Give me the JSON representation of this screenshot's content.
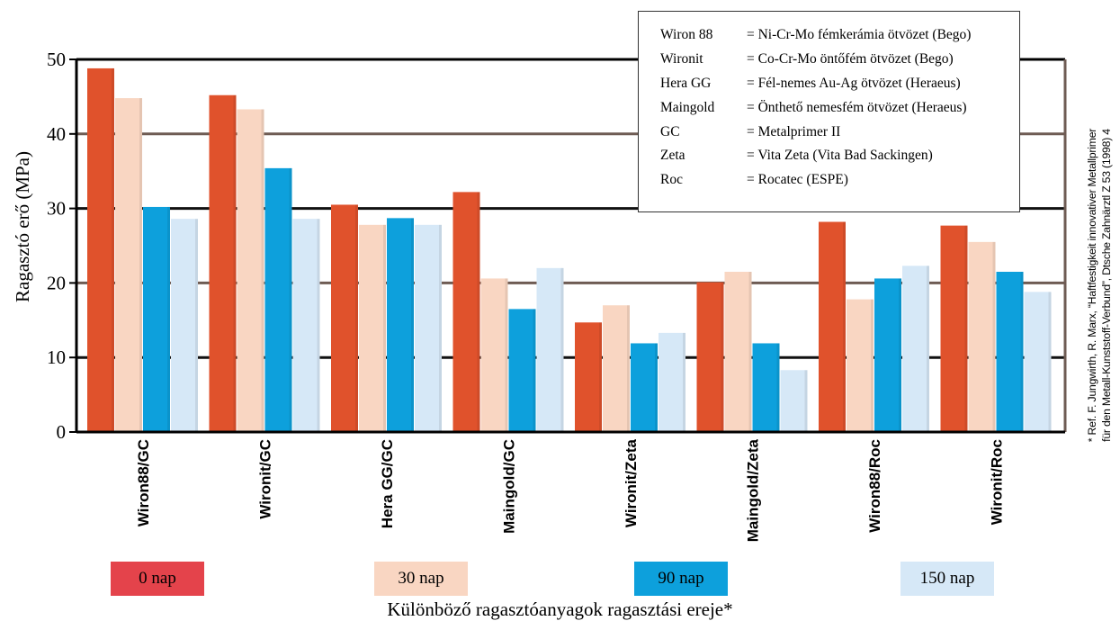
{
  "chart_data": {
    "type": "bar",
    "title": "Különböző ragasztóanyagok ragasztási ereje*",
    "ylabel": "Ragasztó erő (MPa)",
    "xlabel": "",
    "ylim": [
      0,
      50
    ],
    "yticks": [
      0,
      10,
      20,
      30,
      40,
      50
    ],
    "grid": true,
    "categories": [
      "Wiron88/GC",
      "Wironit/GC",
      "Hera GG/GC",
      "Maingold/GC",
      "Wironit/Zeta",
      "Maingold/Zeta",
      "Wiron88/Roc",
      "Wironit/Roc"
    ],
    "series": [
      {
        "name": "0 nap",
        "color": "#e0522c",
        "values": [
          48.8,
          45.2,
          30.5,
          32.2,
          14.7,
          20.1,
          28.2,
          27.7
        ]
      },
      {
        "name": "30 nap",
        "color": "#f9d6c2",
        "values": [
          44.8,
          43.3,
          27.8,
          20.6,
          17.0,
          21.5,
          17.8,
          25.5
        ]
      },
      {
        "name": "90 nap",
        "color": "#0da0dc",
        "values": [
          30.2,
          35.4,
          28.7,
          16.5,
          11.9,
          11.9,
          20.6,
          21.5
        ]
      },
      {
        "name": "150 nap",
        "color": "#d6e8f7",
        "values": [
          28.6,
          28.6,
          27.8,
          22.0,
          13.3,
          8.3,
          22.3,
          18.8
        ]
      }
    ],
    "legend_placement": "bottom"
  },
  "colors": {
    "day0_key": "#e4434b",
    "day30_key": "#f9d6c2",
    "day90_key": "#0da0dc",
    "day150_key": "#d6e8f7",
    "gridline": "#6e5b53",
    "plot_background": "#ffffff"
  },
  "materials_legend": [
    {
      "abbr": "Wiron 88",
      "desc": "= Ni-Cr-Mo fémkerámia ötvözet (Bego)"
    },
    {
      "abbr": "Wironit",
      "desc": "= Co-Cr-Mo öntőfém ötvözet (Bego)"
    },
    {
      "abbr": "Hera GG",
      "desc": "= Fél-nemes Au-Ag ötvözet (Heraeus)"
    },
    {
      "abbr": "Maingold",
      "desc": "= Önthető nemesfém ötvözet (Heraeus)"
    },
    {
      "abbr": "GC",
      "desc": "= Metalprimer II"
    },
    {
      "abbr": "Zeta",
      "desc": "= Vita Zeta (Vita Bad Sackingen)"
    },
    {
      "abbr": "Roc",
      "desc": "= Rocatec (ESPE)"
    }
  ],
  "reference_note": {
    "line1": "* Ref. F. Jungwirth, R. Marx, “Haftfestigkeit innovativer Metallprimer",
    "line2": "für den Metall-Kunststoff-Verbund”, Dtsche Zahnärztl Z 53 (1998) 4"
  }
}
